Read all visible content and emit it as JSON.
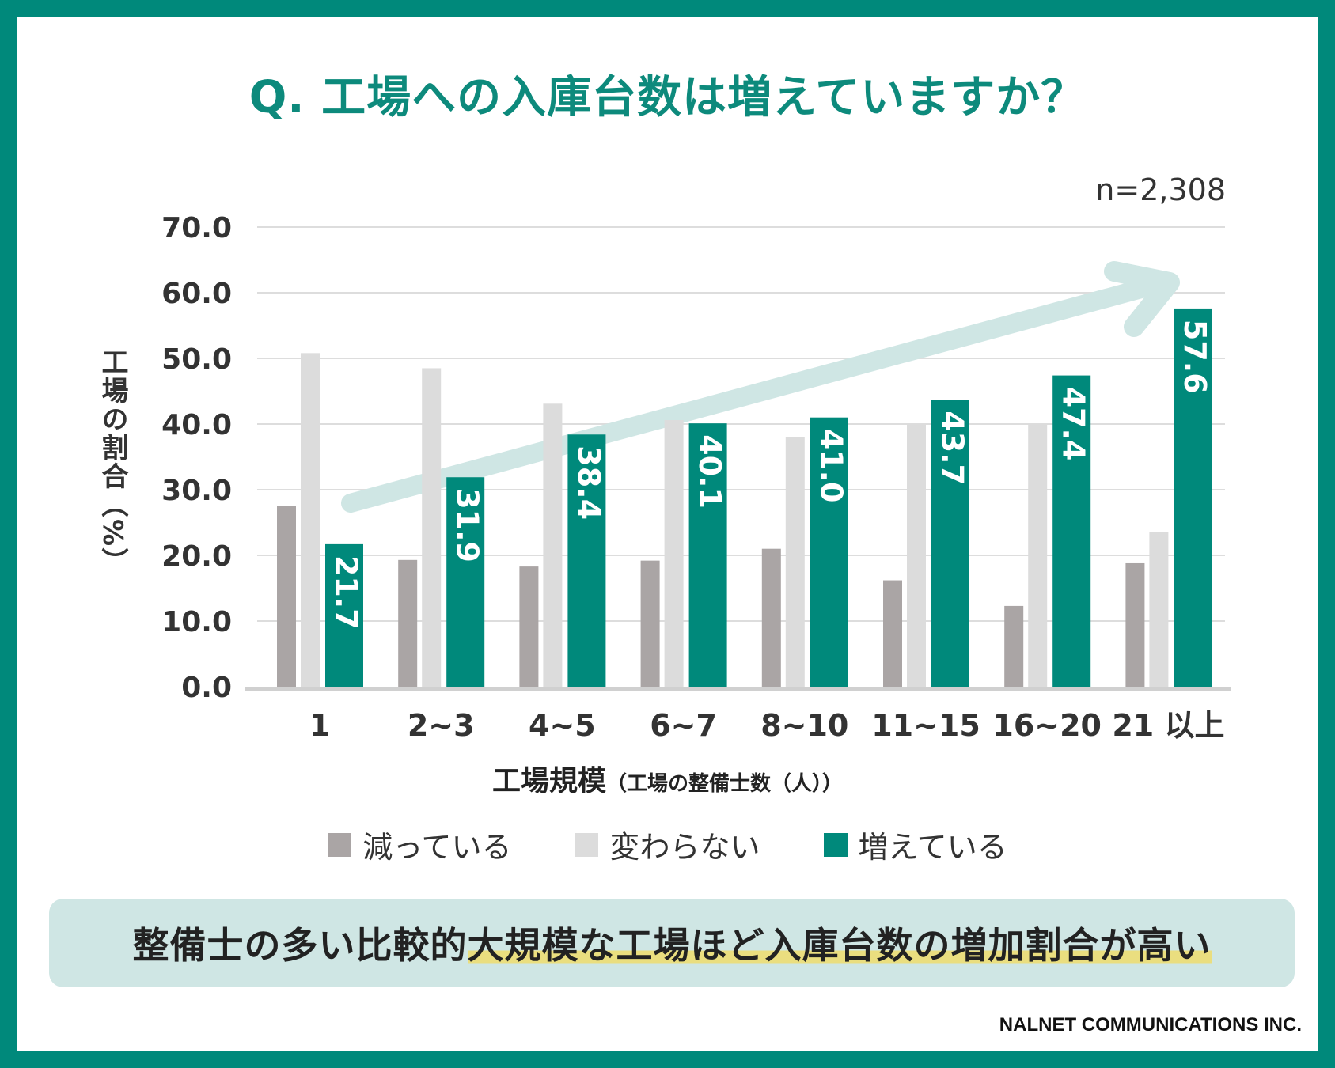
{
  "title": "Q. 工場への入庫台数は増えていますか？",
  "sample_size": "n=2,308",
  "conclusion": {
    "prefix": "整備士の多い比較的",
    "highlight": "大規模な工場ほど入庫台数の増加割合が高い"
  },
  "copyright": "NALNET COMMUNICATIONS INC.",
  "colors": {
    "frame": "#00897b",
    "decrease": "#aaa5a5",
    "same": "#dcdcdc",
    "increase": "#00897b",
    "trend_arrow": "#cfe6e4"
  },
  "chart_data": {
    "type": "bar",
    "title": "Q. 工場への入庫台数は増えていますか？",
    "xlabel": "工場規模",
    "xlabel_sub": "（工場の整備士数（人））",
    "ylabel": "工場の割合（%）",
    "ylim": [
      0,
      70
    ],
    "yticks": [
      "0.0",
      "10.0",
      "20.0",
      "30.0",
      "40.0",
      "50.0",
      "60.0",
      "70.0"
    ],
    "grid": true,
    "legend_position": "bottom",
    "categories": [
      "1",
      "2~3",
      "4~5",
      "6~7",
      "8~10",
      "11~15",
      "16~20",
      "21 以上"
    ],
    "series": [
      {
        "name": "減っている",
        "values": [
          27.5,
          19.3,
          18.3,
          19.2,
          21.0,
          16.2,
          12.3,
          18.8
        ]
      },
      {
        "name": "変わらない",
        "values": [
          50.8,
          48.5,
          43.1,
          40.6,
          38.0,
          40.0,
          40.0,
          23.6
        ]
      },
      {
        "name": "増えている",
        "values": [
          21.7,
          31.9,
          38.4,
          40.1,
          41.0,
          43.7,
          47.4,
          57.6
        ],
        "labels": [
          "21.7",
          "31.9",
          "38.4",
          "40.1",
          "41.0",
          "43.7",
          "47.4",
          "57.6"
        ]
      }
    ]
  }
}
